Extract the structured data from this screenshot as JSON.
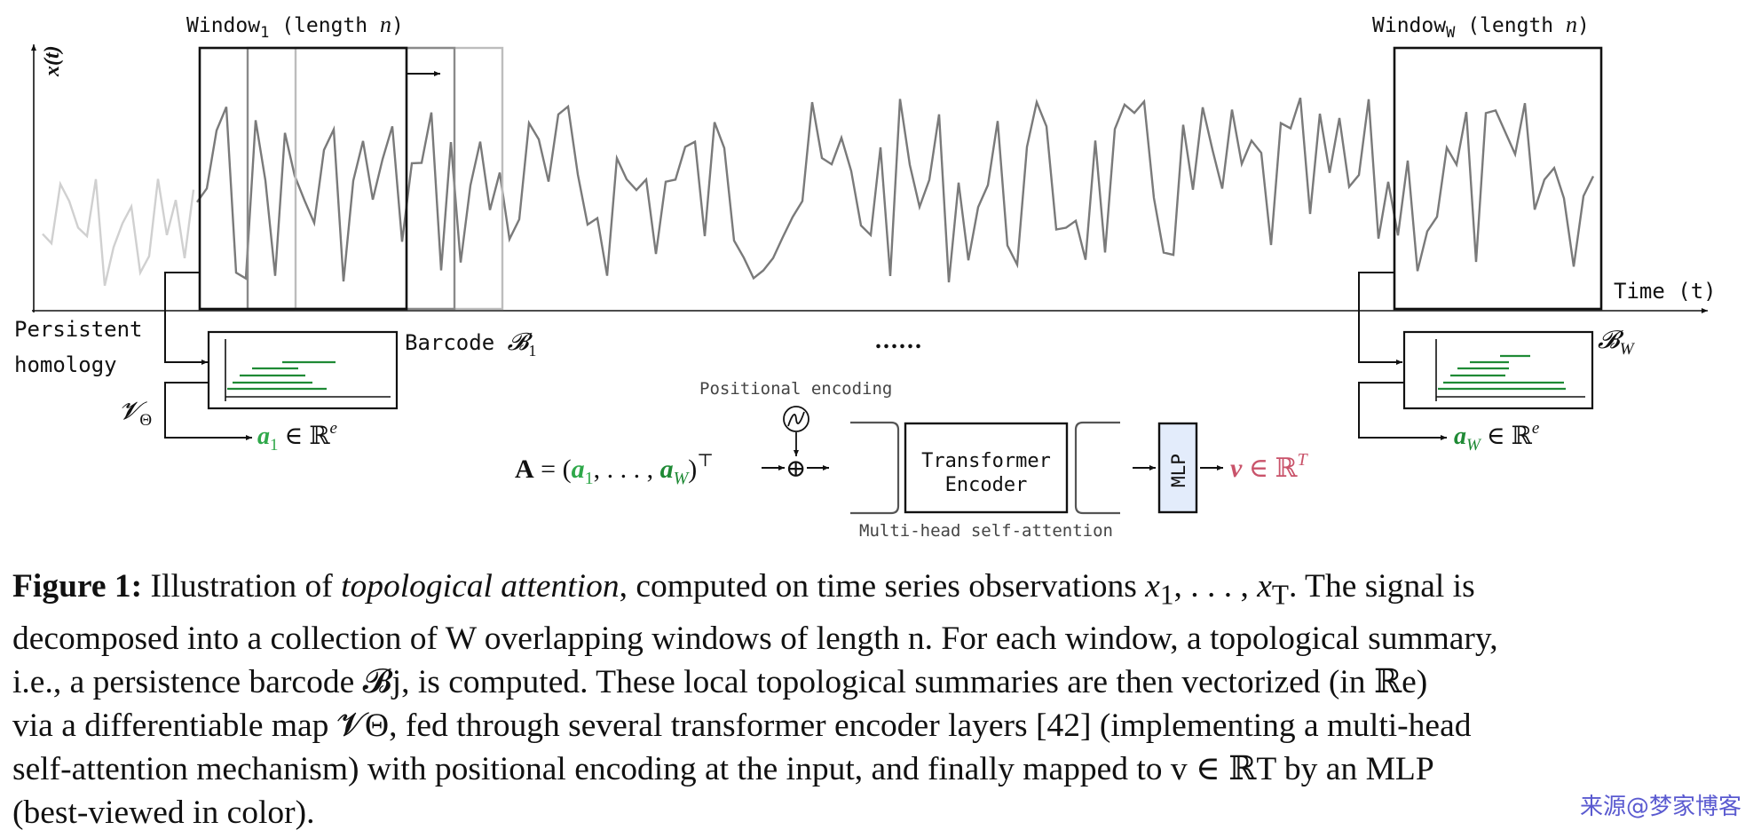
{
  "diagram": {
    "y_axis_label": "x(t)",
    "x_axis_label": "Time (t)",
    "window_first_label": {
      "prefix": "Window",
      "sub": "1",
      "suffix": " (length ",
      "var": "n",
      "end": ")"
    },
    "window_last_label": {
      "prefix": "Window",
      "sub": "W",
      "suffix": " (length ",
      "var": "n",
      "end": ")"
    },
    "persistent_homology_label": [
      "Persistent",
      "homology"
    ],
    "barcode_first_label": {
      "text": "Barcode ",
      "math": "𝓑",
      "sub": "1"
    },
    "barcode_last_label": {
      "math": "𝓑",
      "sub": "W"
    },
    "vectorizer_label": {
      "math": "𝓥",
      "sub": "Θ"
    },
    "a1_label": {
      "var": "a",
      "sub": "1",
      "rest": " ∈ ℝ",
      "sup": "e"
    },
    "aW_label": {
      "var": "a",
      "sub": "W",
      "rest": " ∈ ℝ",
      "sup": "e"
    },
    "ellipsis": "......",
    "positional_encoding_label": "Positional encoding",
    "positional_symbol": "∽",
    "sum_symbol": "⊕",
    "matrix_expression": {
      "lhs": "A",
      "eq": " = (",
      "a1": "a",
      "a1_sub": "1",
      "mid": ", . . . , ",
      "aW": "a",
      "aW_sub": "W",
      "close": ")",
      "sup": "⊤"
    },
    "transformer_label": [
      "Transformer",
      "Encoder"
    ],
    "attention_label": "Multi-head self-attention",
    "mlp_label": "MLP",
    "output_label": {
      "var": "v",
      "rest": " ∈ ℝ",
      "sup": "T"
    },
    "colors": {
      "green": "#1f8a35",
      "output": "#c9536a",
      "signal": "#7a7a7a",
      "signal_faded": "#d0d0d0",
      "mlp_fill": "#e3ecfb"
    }
  },
  "caption": {
    "figure_label": "Figure 1:",
    "lines": [
      [
        "Illustration of ",
        "topological attention",
        ", computed on time series observations ",
        "x",
        "1",
        ", . . . , ",
        "x",
        "T",
        ". The signal is"
      ],
      "decomposed into a collection of W overlapping windows of length n. For each window, a topological summary,",
      "i.e., a persistence barcode 𝓑j, is computed.  These local topological summaries are then vectorized (in ℝe)",
      "via a differentiable map 𝓥Θ, fed through several transformer encoder layers [42] (implementing a multi-head",
      "self-attention mechanism) with positional encoding at the input, and finally mapped to v ∈ ℝT by an MLP",
      "(best-viewed in color)."
    ]
  },
  "watermark": "来源@梦家博客"
}
